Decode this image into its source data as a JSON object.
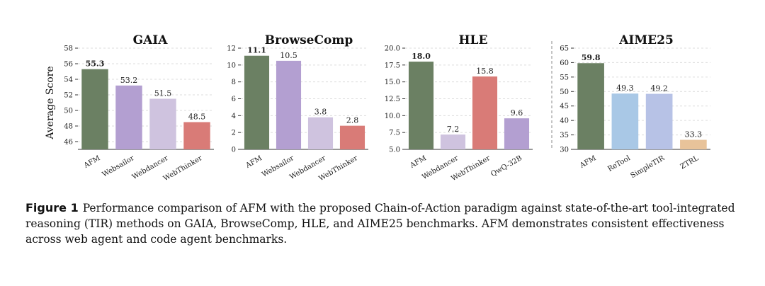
{
  "y_axis_label": "Average Score",
  "chart_data": [
    {
      "type": "bar",
      "title": "GAIA",
      "categories": [
        "AFM",
        "Websailor",
        "Webdancer",
        "WebThinker"
      ],
      "values": [
        55.3,
        53.2,
        51.5,
        48.5
      ],
      "value_labels": [
        "55.3",
        "53.2",
        "51.5",
        "48.5"
      ],
      "bar_colors": [
        "#6b8063",
        "#b39fd1",
        "#cfc3df",
        "#d97b77"
      ],
      "ylim": [
        45,
        58
      ],
      "yticks": [
        46,
        48,
        50,
        52,
        54,
        56,
        58
      ],
      "ytick_labels": [
        "46",
        "48",
        "50",
        "52",
        "54",
        "56",
        "58"
      ],
      "ylabel": "Average Score",
      "grid": true,
      "best_index": 0
    },
    {
      "type": "bar",
      "title": "BrowseComp",
      "categories": [
        "AFM",
        "Websailor",
        "Webdancer",
        "WebThinker"
      ],
      "values": [
        11.1,
        10.5,
        3.8,
        2.8
      ],
      "value_labels": [
        "11.1",
        "10.5",
        "3.8",
        "2.8"
      ],
      "bar_colors": [
        "#6b8063",
        "#b39fd1",
        "#cfc3df",
        "#d97b77"
      ],
      "ylim": [
        0,
        12
      ],
      "yticks": [
        0,
        2,
        4,
        6,
        8,
        10,
        12
      ],
      "ytick_labels": [
        "0",
        "2",
        "4",
        "6",
        "8",
        "10",
        "12"
      ],
      "ylabel": "",
      "grid": true,
      "best_index": 0
    },
    {
      "type": "bar",
      "title": "HLE",
      "categories": [
        "AFM",
        "Webdancer",
        "WebThinker",
        "QwQ-32B"
      ],
      "values": [
        18.0,
        7.2,
        15.8,
        9.6
      ],
      "value_labels": [
        "18.0",
        "7.2",
        "15.8",
        "9.6"
      ],
      "bar_colors": [
        "#6b8063",
        "#cfc3df",
        "#d97b77",
        "#b39fd1"
      ],
      "ylim": [
        5,
        20
      ],
      "yticks": [
        5.0,
        7.5,
        10.0,
        12.5,
        15.0,
        17.5,
        20.0
      ],
      "ytick_labels": [
        "5.0",
        "7.5",
        "10.0",
        "12.5",
        "15.0",
        "17.5",
        "20.0"
      ],
      "ylabel": "",
      "grid": true,
      "best_index": 0
    },
    {
      "type": "bar",
      "title": "AIME25",
      "categories": [
        "AFM",
        "ReTool",
        "SimpleTIR",
        "ZTRL"
      ],
      "values": [
        59.8,
        49.3,
        49.2,
        33.3
      ],
      "value_labels": [
        "59.8",
        "49.3",
        "49.2",
        "33.3"
      ],
      "bar_colors": [
        "#6b8063",
        "#a9c8e6",
        "#b7c2e6",
        "#e8c39a"
      ],
      "ylim": [
        30,
        65
      ],
      "yticks": [
        30,
        35,
        40,
        45,
        50,
        55,
        60,
        65
      ],
      "ytick_labels": [
        "30",
        "35",
        "40",
        "45",
        "50",
        "55",
        "60",
        "65"
      ],
      "ylabel": "",
      "grid": true,
      "best_index": 0
    }
  ],
  "caption": {
    "label": "Figure 1",
    "text": "Performance comparison of AFM with the proposed Chain-of-Action paradigm against state-of-the-art tool-integrated reasoning (TIR) methods on GAIA, BrowseComp, HLE, and AIME25 benchmarks. AFM demonstrates consistent effectiveness across web agent and code agent benchmarks."
  }
}
